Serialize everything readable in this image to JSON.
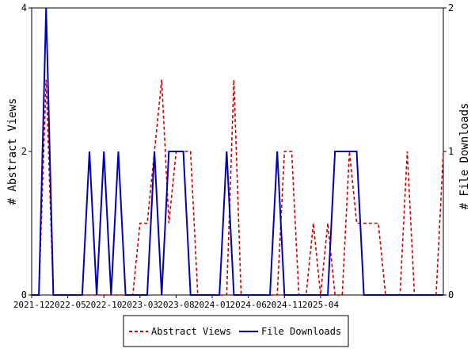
{
  "chart_data": {
    "type": "line",
    "title": "",
    "x_tick_labels": [
      "2021-12",
      "2022-05",
      "2022-10",
      "2023-03",
      "2023-08",
      "2024-01",
      "2024-06",
      "2024-11",
      "2025-04"
    ],
    "left_axis": {
      "label": "# Abstract Views",
      "ticks": [
        "0",
        "2",
        "4"
      ],
      "range": [
        0,
        4
      ]
    },
    "right_axis": {
      "label": "# File Downloads",
      "ticks": [
        "0",
        "1",
        "2"
      ],
      "range": [
        0,
        2
      ]
    },
    "grid": false,
    "legend_position": "bottom",
    "series": [
      {
        "name": "Abstract Views",
        "axis": "left",
        "color": "#cc0000",
        "style": "dashed",
        "values": [
          0,
          0,
          3,
          0,
          0,
          0,
          0,
          0,
          0,
          0,
          0,
          0,
          0,
          0,
          0,
          1,
          1,
          2,
          3,
          1,
          2,
          2,
          2,
          0,
          0,
          0,
          0,
          0,
          3,
          0,
          0,
          0,
          0,
          0,
          0,
          2,
          2,
          0,
          0,
          1,
          0,
          1,
          0,
          0,
          2,
          1,
          1,
          1,
          1,
          0,
          0,
          0,
          2,
          0,
          0,
          0,
          0,
          2
        ]
      },
      {
        "name": "File Downloads",
        "axis": "right",
        "color": "#0000bb",
        "style": "solid",
        "values": [
          0,
          0,
          2,
          0,
          0,
          0,
          0,
          0,
          1,
          0,
          1,
          0,
          1,
          0,
          0,
          0,
          0,
          1,
          0,
          1,
          1,
          1,
          0,
          0,
          0,
          0,
          0,
          1,
          0,
          0,
          0,
          0,
          0,
          0,
          1,
          0,
          0,
          0,
          0,
          0,
          0,
          0,
          1,
          1,
          1,
          1,
          0,
          0,
          0,
          0,
          0,
          0,
          0,
          0,
          0,
          0,
          0,
          0
        ]
      }
    ]
  },
  "colors": {
    "axis": "#000000",
    "legend_border": "#000000"
  }
}
